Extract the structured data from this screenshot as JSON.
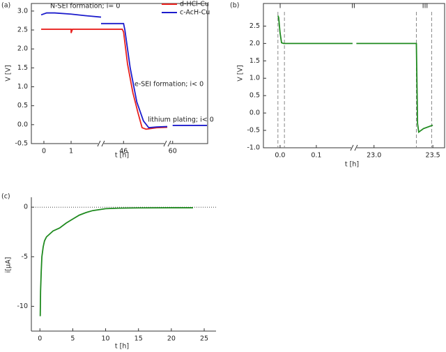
{
  "chart_data": [
    {
      "type": "line",
      "label": "(a)",
      "x_label": "t [h]",
      "y_label": "V [V]",
      "annotations": [
        "N-SEI formation;  i= 0",
        "e-SEI formation;  i< 0",
        "lithium plating;  i< 0"
      ],
      "xlim": [
        [
          -0.46,
          2.1
        ],
        [
          44.3,
          49.3
        ],
        [
          59.6,
          62.6
        ]
      ],
      "xticks": [
        0,
        1,
        46,
        60
      ],
      "ylim": [
        -0.5,
        3.2
      ],
      "yticks": [
        -0.5,
        {
          "value": 0,
          "label": "0.0"
        },
        0.5,
        {
          "value": 1,
          "label": "1.0"
        },
        1.5,
        {
          "value": 2,
          "label": "2.0"
        },
        2.5,
        {
          "value": 3,
          "label": "3.0"
        }
      ],
      "series": [
        {
          "name": "d-HCl-Cu",
          "color": "#e8211e",
          "x": [
            -0.1,
            0.5,
            0.95,
            1.0,
            1.0,
            1.05,
            1.5,
            2.1,
            null,
            44.3,
            45.9,
            46.0,
            46.3,
            46.7,
            47.1,
            47.4,
            47.7,
            48.5,
            49.3
          ],
          "values": [
            2.52,
            2.52,
            2.52,
            2.52,
            2.42,
            2.52,
            2.52,
            2.52,
            null,
            2.52,
            2.52,
            2.45,
            1.6,
            0.85,
            0.3,
            -0.08,
            -0.12,
            -0.08,
            -0.07
          ]
        },
        {
          "name": "c-AcH-Cu",
          "color": "#1c1ccc",
          "x": [
            -0.1,
            0.1,
            0.4,
            1.0,
            1.5,
            2.1,
            null,
            44.3,
            46.0,
            46.1,
            46.5,
            47.0,
            47.5,
            47.9,
            48.5,
            49.3,
            null,
            60.0,
            61.0,
            62.55
          ],
          "values": [
            2.9,
            2.95,
            2.95,
            2.92,
            2.88,
            2.84,
            null,
            2.67,
            2.67,
            2.5,
            1.5,
            0.6,
            0.1,
            -0.08,
            -0.06,
            -0.05,
            null,
            -0.02,
            -0.02,
            -0.02
          ]
        }
      ]
    },
    {
      "type": "line",
      "label": "(b)",
      "x_label": "t [h]",
      "y_label": "V [V]",
      "annotations": [
        "I",
        "II",
        "III"
      ],
      "xlim": [
        [
          -0.046,
          0.204
        ],
        [
          22.83,
          23.6
        ]
      ],
      "xticks": [
        {
          "value": 0,
          "label": "0.0"
        },
        0.1,
        {
          "value": 23,
          "label": "23.0"
        },
        23.5
      ],
      "ylim": [
        -1.0,
        3.15
      ],
      "yticks": [
        {
          "value": -1,
          "label": "-1.0"
        },
        -0.5,
        {
          "value": 0,
          "label": "0.0"
        },
        0.5,
        {
          "value": 1,
          "label": "1.0"
        },
        1.5,
        {
          "value": 2,
          "label": "2.0"
        },
        2.5
      ],
      "vlines": [
        -0.006,
        0.012,
        23.36,
        23.49
      ],
      "series": [
        {
          "color": "#1f8a1f",
          "x": [
            -0.006,
            -0.004,
            0.0,
            0.004,
            0.01,
            0.1,
            0.2,
            null,
            22.85,
            23.2,
            23.36,
            23.37,
            23.38,
            23.42,
            23.5
          ],
          "values": [
            2.8,
            2.75,
            2.3,
            2.02,
            2.0,
            2.0,
            2.0,
            null,
            2.0,
            2.0,
            2.0,
            -0.3,
            -0.55,
            -0.45,
            -0.35
          ]
        }
      ]
    },
    {
      "type": "line",
      "label": "(c)",
      "x_label": "t [h]",
      "y_label": "i[µA]",
      "xlim": [
        -1.3,
        26.8
      ],
      "xticks": [
        0,
        5,
        10,
        15,
        20,
        25
      ],
      "ylim": [
        -12.5,
        1
      ],
      "yticks": [
        -10,
        -5,
        0
      ],
      "hline": 0,
      "series": [
        {
          "color": "#1f8a1f",
          "x": [
            0.05,
            0.1,
            0.2,
            0.3,
            0.5,
            0.7,
            1,
            1.5,
            2,
            3,
            4,
            5,
            6,
            7,
            8,
            10,
            12,
            15,
            20,
            23.3
          ],
          "values": [
            -11,
            -8.5,
            -6.5,
            -5,
            -4,
            -3.4,
            -3,
            -2.7,
            -2.4,
            -2.1,
            -1.6,
            -1.2,
            -0.8,
            -0.55,
            -0.35,
            -0.15,
            -0.1,
            -0.07,
            -0.06,
            -0.06
          ]
        }
      ]
    }
  ]
}
